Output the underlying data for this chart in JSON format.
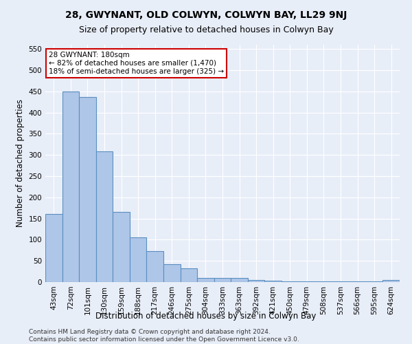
{
  "title": "28, GWYNANT, OLD COLWYN, COLWYN BAY, LL29 9NJ",
  "subtitle": "Size of property relative to detached houses in Colwyn Bay",
  "xlabel": "Distribution of detached houses by size in Colwyn Bay",
  "ylabel": "Number of detached properties",
  "categories": [
    "43sqm",
    "72sqm",
    "101sqm",
    "130sqm",
    "159sqm",
    "188sqm",
    "217sqm",
    "246sqm",
    "275sqm",
    "304sqm",
    "333sqm",
    "363sqm",
    "392sqm",
    "421sqm",
    "450sqm",
    "479sqm",
    "508sqm",
    "537sqm",
    "566sqm",
    "595sqm",
    "624sqm"
  ],
  "values": [
    160,
    450,
    437,
    308,
    165,
    105,
    73,
    43,
    33,
    10,
    10,
    10,
    5,
    3,
    1,
    1,
    1,
    1,
    1,
    1,
    5
  ],
  "bar_color": "#aec6e8",
  "bar_edge_color": "#5a8fc0",
  "ylim": [
    0,
    560
  ],
  "yticks": [
    0,
    50,
    100,
    150,
    200,
    250,
    300,
    350,
    400,
    450,
    500,
    550
  ],
  "annotation_box_text": "28 GWYNANT: 180sqm\n← 82% of detached houses are smaller (1,470)\n18% of semi-detached houses are larger (325) →",
  "annotation_box_color": "#ffffff",
  "annotation_box_edge_color": "#cc0000",
  "bg_color": "#e8eef8",
  "footer_text": "Contains HM Land Registry data © Crown copyright and database right 2024.\nContains public sector information licensed under the Open Government Licence v3.0.",
  "title_fontsize": 10,
  "subtitle_fontsize": 9,
  "tick_fontsize": 7.5,
  "label_fontsize": 8.5,
  "footer_fontsize": 6.5,
  "annotation_fontsize": 7.5
}
